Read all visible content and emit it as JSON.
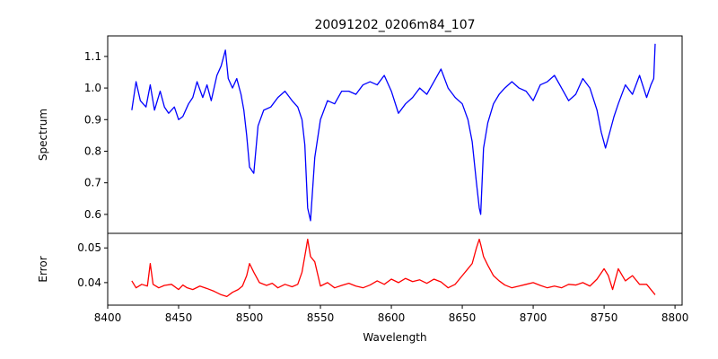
{
  "chart_data": [
    {
      "type": "line",
      "title": "20091202_0206m84_107",
      "xlabel": "",
      "ylabel": "Spectrum",
      "xlim": [
        8400,
        8805
      ],
      "ylim": [
        0.54,
        1.165
      ],
      "xticks": [
        8400,
        8450,
        8500,
        8550,
        8600,
        8650,
        8700,
        8750,
        8800
      ],
      "yticks": [
        0.6,
        0.7,
        0.8,
        0.9,
        1.0,
        1.1
      ],
      "ytick_labels": [
        "0.6",
        "0.7",
        "0.8",
        "0.9",
        "1.0",
        "1.1"
      ],
      "grid": false,
      "color": "#0000ff",
      "x": [
        8417,
        8420,
        8423,
        8427,
        8430,
        8433,
        8437,
        8440,
        8443,
        8447,
        8450,
        8453,
        8457,
        8460,
        8463,
        8467,
        8470,
        8473,
        8477,
        8480,
        8483,
        8485,
        8488,
        8491,
        8494,
        8496,
        8498,
        8500,
        8503,
        8506,
        8510,
        8515,
        8520,
        8525,
        8530,
        8534,
        8537,
        8539,
        8541,
        8542,
        8543,
        8546,
        8550,
        8555,
        8560,
        8565,
        8570,
        8575,
        8580,
        8585,
        8590,
        8595,
        8600,
        8605,
        8610,
        8615,
        8620,
        8625,
        8630,
        8635,
        8640,
        8645,
        8650,
        8654,
        8657,
        8660,
        8662,
        8663,
        8665,
        8668,
        8672,
        8676,
        8680,
        8685,
        8690,
        8695,
        8700,
        8705,
        8710,
        8715,
        8720,
        8725,
        8730,
        8735,
        8740,
        8745,
        8748,
        8751,
        8754,
        8757,
        8760,
        8765,
        8770,
        8775,
        8780,
        8783,
        8785,
        8786
      ],
      "y": [
        0.93,
        1.02,
        0.96,
        0.94,
        1.01,
        0.93,
        0.99,
        0.94,
        0.92,
        0.94,
        0.9,
        0.91,
        0.95,
        0.97,
        1.02,
        0.97,
        1.01,
        0.96,
        1.04,
        1.07,
        1.12,
        1.03,
        1.0,
        1.03,
        0.98,
        0.93,
        0.85,
        0.75,
        0.73,
        0.88,
        0.93,
        0.94,
        0.97,
        0.99,
        0.96,
        0.94,
        0.9,
        0.82,
        0.62,
        0.6,
        0.58,
        0.78,
        0.9,
        0.96,
        0.95,
        0.99,
        0.99,
        0.98,
        1.01,
        1.02,
        1.01,
        1.04,
        0.99,
        0.92,
        0.95,
        0.97,
        1.0,
        0.98,
        1.02,
        1.06,
        1.0,
        0.97,
        0.95,
        0.9,
        0.83,
        0.7,
        0.62,
        0.6,
        0.81,
        0.89,
        0.95,
        0.98,
        1.0,
        1.02,
        1.0,
        0.99,
        0.96,
        1.01,
        1.02,
        1.04,
        1.0,
        0.96,
        0.98,
        1.03,
        1.0,
        0.93,
        0.86,
        0.81,
        0.86,
        0.91,
        0.95,
        1.01,
        0.98,
        1.04,
        0.97,
        1.01,
        1.03,
        1.14
      ]
    },
    {
      "type": "line",
      "title": "",
      "xlabel": "Wavelength",
      "ylabel": "Error",
      "xlim": [
        8400,
        8805
      ],
      "ylim": [
        0.0335,
        0.0542
      ],
      "xticks": [
        8400,
        8450,
        8500,
        8550,
        8600,
        8650,
        8700,
        8750,
        8800
      ],
      "yticks": [
        0.04,
        0.05
      ],
      "ytick_labels": [
        "0.04",
        "0.05"
      ],
      "grid": false,
      "color": "#ff0000",
      "x": [
        8417,
        8420,
        8424,
        8428,
        8430,
        8432,
        8436,
        8440,
        8445,
        8450,
        8453,
        8456,
        8460,
        8465,
        8470,
        8475,
        8480,
        8484,
        8488,
        8492,
        8495,
        8498,
        8500,
        8503,
        8507,
        8512,
        8516,
        8520,
        8525,
        8530,
        8534,
        8537,
        8540,
        8541,
        8543,
        8546,
        8550,
        8555,
        8560,
        8565,
        8570,
        8575,
        8580,
        8585,
        8590,
        8595,
        8600,
        8605,
        8610,
        8615,
        8620,
        8625,
        8630,
        8635,
        8640,
        8645,
        8650,
        8654,
        8657,
        8660,
        8662,
        8663,
        8665,
        8668,
        8672,
        8676,
        8680,
        8685,
        8690,
        8695,
        8700,
        8705,
        8710,
        8715,
        8720,
        8725,
        8730,
        8735,
        8740,
        8745,
        8750,
        8753,
        8756,
        8760,
        8765,
        8770,
        8775,
        8780,
        8784,
        8786
      ],
      "y": [
        0.0405,
        0.0385,
        0.0395,
        0.039,
        0.0455,
        0.0395,
        0.0385,
        0.0392,
        0.0395,
        0.038,
        0.0393,
        0.0385,
        0.038,
        0.039,
        0.0383,
        0.0375,
        0.0365,
        0.036,
        0.0372,
        0.038,
        0.039,
        0.042,
        0.0455,
        0.043,
        0.04,
        0.0392,
        0.0398,
        0.0385,
        0.0395,
        0.0388,
        0.0395,
        0.043,
        0.05,
        0.0525,
        0.0475,
        0.046,
        0.039,
        0.04,
        0.0385,
        0.0392,
        0.0398,
        0.039,
        0.0385,
        0.0393,
        0.0405,
        0.0395,
        0.041,
        0.04,
        0.0412,
        0.0403,
        0.0408,
        0.0398,
        0.041,
        0.0402,
        0.0385,
        0.0395,
        0.042,
        0.044,
        0.0455,
        0.05,
        0.0525,
        0.051,
        0.0475,
        0.045,
        0.042,
        0.0405,
        0.0393,
        0.0385,
        0.039,
        0.0395,
        0.04,
        0.0392,
        0.0385,
        0.039,
        0.0385,
        0.0395,
        0.0393,
        0.04,
        0.039,
        0.041,
        0.044,
        0.042,
        0.038,
        0.044,
        0.0405,
        0.042,
        0.0395,
        0.0395,
        0.0375,
        0.0365
      ]
    }
  ]
}
